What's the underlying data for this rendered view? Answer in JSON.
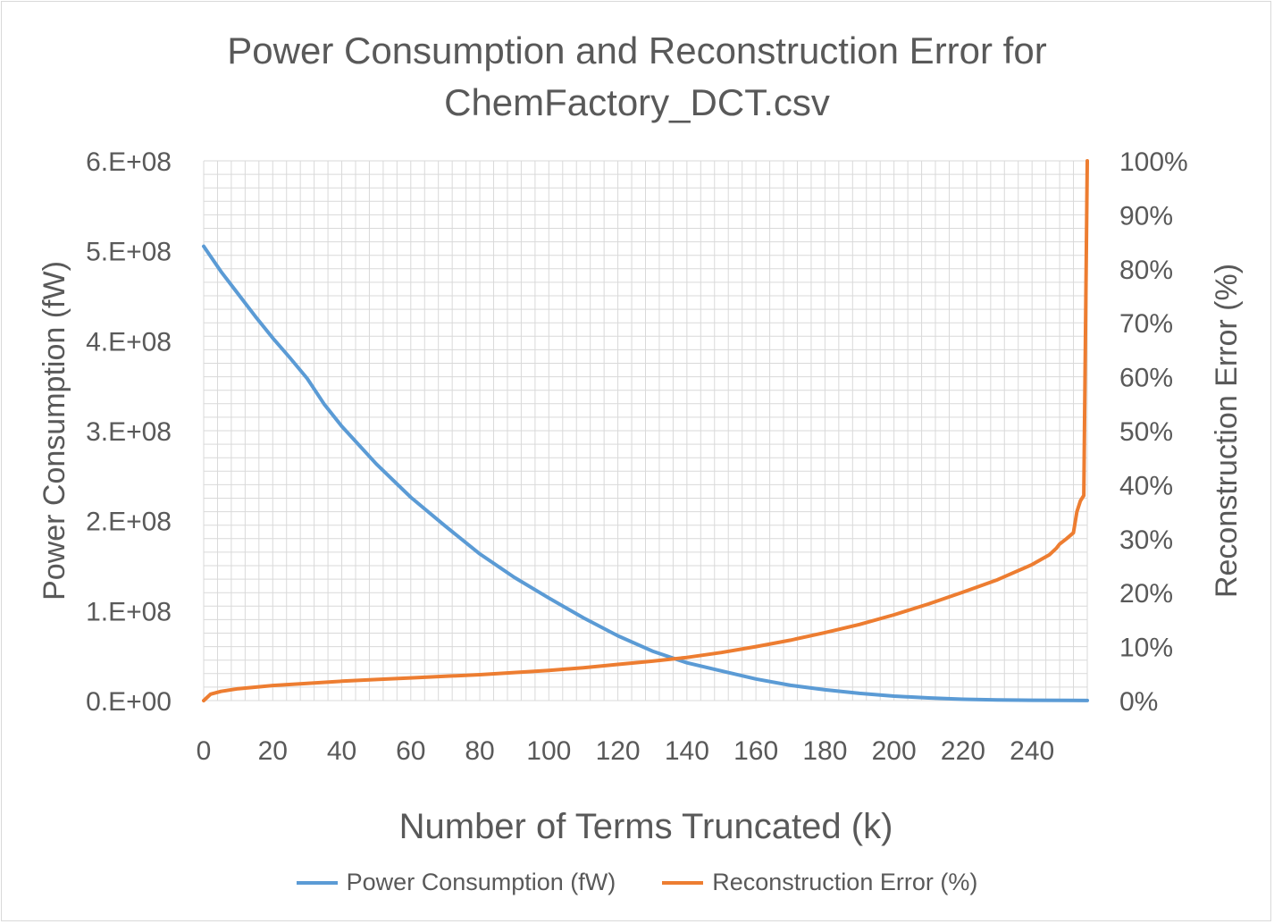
{
  "chart_data": {
    "type": "line",
    "title_line1": "Power Consumption and Reconstruction Error for",
    "title_line2": "ChemFactory_DCT.csv",
    "xlabel": "Number of Terms Truncated (k)",
    "ylabel_left": "Power Consumption (fW)",
    "ylabel_right": "Reconstruction Error (%)",
    "x_range": [
      0,
      256
    ],
    "x_ticks": [
      "0",
      "20",
      "40",
      "60",
      "80",
      "100",
      "120",
      "140",
      "160",
      "180",
      "200",
      "220",
      "240"
    ],
    "x_tick_values": [
      0,
      20,
      40,
      60,
      80,
      100,
      120,
      140,
      160,
      180,
      200,
      220,
      240
    ],
    "y_left_range": [
      0,
      600000000
    ],
    "y_left_ticks": [
      "0.E+00",
      "1.E+08",
      "2.E+08",
      "3.E+08",
      "4.E+08",
      "5.E+08",
      "6.E+08"
    ],
    "y_left_tick_values": [
      0,
      100000000,
      200000000,
      300000000,
      400000000,
      500000000,
      600000000
    ],
    "y_right_range": [
      0,
      100
    ],
    "y_right_ticks": [
      "0%",
      "10%",
      "20%",
      "30%",
      "40%",
      "50%",
      "60%",
      "70%",
      "80%",
      "90%",
      "100%"
    ],
    "y_right_tick_values": [
      0,
      10,
      20,
      30,
      40,
      50,
      60,
      70,
      80,
      90,
      100
    ],
    "grid": true,
    "legend_position": "bottom",
    "series": [
      {
        "name": "Power Consumption (fW)",
        "axis": "left",
        "color": "#5b9bd5",
        "x": [
          0,
          5,
          10,
          15,
          20,
          25,
          30,
          35,
          40,
          50,
          60,
          70,
          80,
          90,
          100,
          110,
          120,
          130,
          140,
          150,
          160,
          170,
          180,
          190,
          200,
          210,
          220,
          230,
          240,
          250,
          256
        ],
        "y": [
          505000000,
          477000000,
          452000000,
          427000000,
          403000000,
          381000000,
          358000000,
          329000000,
          305000000,
          263000000,
          226000000,
          194000000,
          163000000,
          137000000,
          114000000,
          92000000,
          72000000,
          55000000,
          42000000,
          33000000,
          24000000,
          17000000,
          12000000,
          8000000,
          5000000,
          3000000,
          1500000,
          800000,
          400000,
          200000,
          100000
        ]
      },
      {
        "name": "Reconstruction Error (%)",
        "axis": "right",
        "color": "#ed7d31",
        "x": [
          0,
          2,
          5,
          10,
          20,
          30,
          40,
          50,
          60,
          70,
          80,
          90,
          100,
          110,
          120,
          130,
          140,
          150,
          160,
          170,
          180,
          190,
          200,
          210,
          220,
          230,
          240,
          245,
          247,
          248,
          250,
          252,
          253,
          254,
          255,
          256
        ],
        "y": [
          0,
          1.2,
          1.7,
          2.2,
          2.8,
          3.2,
          3.6,
          3.9,
          4.2,
          4.5,
          4.8,
          5.2,
          5.6,
          6.1,
          6.7,
          7.3,
          8.0,
          8.9,
          10.0,
          11.2,
          12.6,
          14.1,
          15.9,
          17.9,
          20.1,
          22.4,
          25.2,
          27.0,
          28.2,
          29.0,
          30.0,
          31.1,
          35.0,
          37.0,
          38.0,
          100
        ]
      }
    ]
  }
}
